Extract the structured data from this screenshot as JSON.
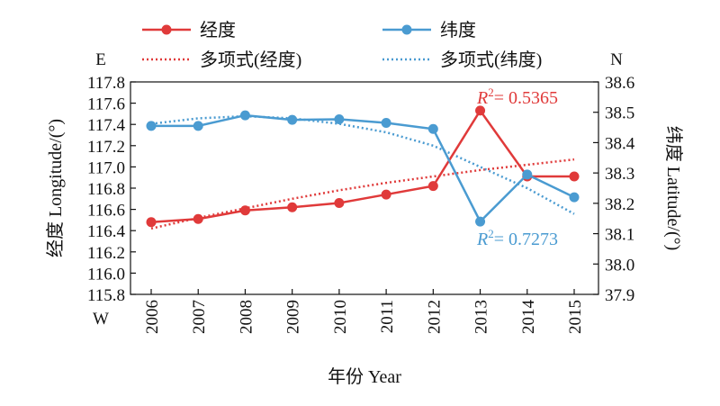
{
  "chart_data": {
    "type": "line",
    "categories": [
      "2006",
      "2007",
      "2008",
      "2009",
      "2010",
      "2011",
      "2012",
      "2013",
      "2014",
      "2015"
    ],
    "xlabel": "年份 Year",
    "ylabel_left": "经度 Longitude/(°)",
    "ylabel_right": "纬度 Latitude/(°)",
    "left_axis": {
      "ylim": [
        115.8,
        117.8
      ],
      "ticks": [
        "115.8",
        "116.0",
        "116.2",
        "116.4",
        "116.6",
        "116.8",
        "117.0",
        "117.2",
        "117.4",
        "117.6",
        "117.8"
      ],
      "top_letter": "E",
      "bottom_letter": "W"
    },
    "right_axis": {
      "ylim": [
        37.9,
        38.6
      ],
      "ticks": [
        "37.9",
        "38.0",
        "38.1",
        "38.2",
        "38.3",
        "38.4",
        "38.5",
        "38.6"
      ],
      "top_letter": "N"
    },
    "series": [
      {
        "name": "经度",
        "axis": "left",
        "color": "#e03a3a",
        "values": [
          116.48,
          116.51,
          116.59,
          116.62,
          116.66,
          116.74,
          116.82,
          117.53,
          116.91,
          116.91
        ]
      },
      {
        "name": "纬度",
        "axis": "right",
        "color": "#4a9bd1",
        "values": [
          38.455,
          38.455,
          38.49,
          38.475,
          38.477,
          38.465,
          38.445,
          38.14,
          38.295,
          38.22
        ]
      }
    ],
    "trendlines": [
      {
        "name": "多项式(经度)",
        "axis": "left",
        "color": "#e03a3a",
        "style": "dotted",
        "values": [
          116.42,
          116.52,
          116.61,
          116.7,
          116.78,
          116.85,
          116.91,
          116.97,
          117.02,
          117.07
        ],
        "r2_label": "= 0.5365"
      },
      {
        "name": "多项式(纬度)",
        "axis": "right",
        "color": "#4a9bd1",
        "style": "dotted",
        "values": [
          38.462,
          38.48,
          38.487,
          38.48,
          38.462,
          38.434,
          38.39,
          38.32,
          38.25,
          38.165
        ],
        "r2_label": "= 0.7273"
      }
    ],
    "legend": "top"
  }
}
